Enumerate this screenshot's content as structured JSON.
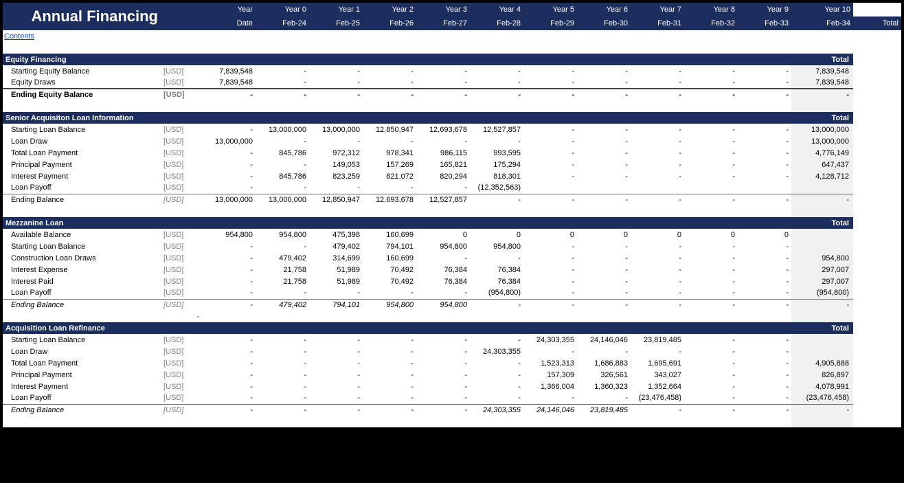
{
  "colors": {
    "header_bg": "#1b2e5e",
    "header_fg": "#ffffff",
    "total_col_bg": "#f0f0f0",
    "link": "#0b4db5",
    "unit": "#7e7e7e",
    "grid_border": "#555555"
  },
  "header": {
    "title": "Annual Financing",
    "year_label": "Year",
    "date_label": "Date",
    "years": [
      "Year 0",
      "Year 1",
      "Year 2",
      "Year 3",
      "Year 4",
      "Year 5",
      "Year 6",
      "Year 7",
      "Year 8",
      "Year 9",
      "Year 10"
    ],
    "dates": [
      "Feb-24",
      "Feb-25",
      "Feb-26",
      "Feb-27",
      "Feb-28",
      "Feb-29",
      "Feb-30",
      "Feb-31",
      "Feb-32",
      "Feb-33",
      "Feb-34"
    ],
    "total_label": "Total"
  },
  "contents_link": "Contents",
  "sections": [
    {
      "name": "Equity Financing",
      "show_total_label": true,
      "rows": [
        {
          "label": "Starting Equity Balance",
          "unit": "[USD]",
          "vals": [
            "7,839,548",
            "-",
            "-",
            "-",
            "-",
            "-",
            "-",
            "-",
            "-",
            "-",
            "-"
          ],
          "total": "7,839,548"
        },
        {
          "label": "Equity Draws",
          "unit": "[USD]",
          "vals": [
            "7,839,548",
            "-",
            "-",
            "-",
            "-",
            "-",
            "-",
            "-",
            "-",
            "-",
            "-"
          ],
          "total": "7,839,548"
        },
        {
          "label": "Ending Equity Balance",
          "unit": "[USD]",
          "vals": [
            "-",
            "-",
            "-",
            "-",
            "-",
            "-",
            "-",
            "-",
            "-",
            "-",
            "-"
          ],
          "total": "-",
          "bold": true,
          "topline": "heavy"
        }
      ]
    },
    {
      "name": "Senior Acquisiton Loan Information",
      "show_total_label": true,
      "rows": [
        {
          "label": "Starting Loan Balance",
          "unit": "[USD]",
          "vals": [
            "-",
            "13,000,000",
            "13,000,000",
            "12,850,947",
            "12,693,678",
            "12,527,857",
            "-",
            "-",
            "-",
            "-",
            "-"
          ],
          "total": "13,000,000"
        },
        {
          "label": "Loan Draw",
          "unit": "[USD]",
          "vals": [
            "13,000,000",
            "-",
            "-",
            "-",
            "-",
            "-",
            "-",
            "-",
            "-",
            "-",
            "-"
          ],
          "total": "13,000,000"
        },
        {
          "label": "Total Loan Payment",
          "unit": "[USD]",
          "vals": [
            "-",
            "845,786",
            "972,312",
            "978,341",
            "986,115",
            "993,595",
            "-",
            "-",
            "-",
            "-",
            "-"
          ],
          "total": "4,776,149"
        },
        {
          "label": "Principal Payment",
          "unit": "[USD]",
          "vals": [
            "-",
            "-",
            "149,053",
            "157,269",
            "165,821",
            "175,294",
            "-",
            "-",
            "-",
            "-",
            "-"
          ],
          "total": "647,437"
        },
        {
          "label": "Interest Payment",
          "unit": "[USD]",
          "vals": [
            "-",
            "845,786",
            "823,259",
            "821,072",
            "820,294",
            "818,301",
            "-",
            "-",
            "-",
            "-",
            "-"
          ],
          "total": "4,128,712"
        },
        {
          "label": "Loan Payoff",
          "unit": "[USD]",
          "vals": [
            "-",
            "-",
            "-",
            "-",
            "-",
            "(12,352,563)",
            "",
            "",
            "",
            "",
            ""
          ],
          "total": ""
        },
        {
          "label": "Ending Balance",
          "unit": "[USD]",
          "unit_italic": true,
          "vals": [
            "13,000,000",
            "13,000,000",
            "12,850,947",
            "12,693,678",
            "12,527,857",
            "-",
            "-",
            "-",
            "-",
            "-",
            "-"
          ],
          "total": "-",
          "topline": "normal"
        }
      ]
    },
    {
      "name": "Mezzanine Loan",
      "show_total_label": true,
      "rows": [
        {
          "label": "Available Balance",
          "unit": "[USD]",
          "vals": [
            "954,800",
            "954,800",
            "475,398",
            "160,699",
            "0",
            "0",
            "0",
            "0",
            "0",
            "0",
            "0"
          ],
          "total": ""
        },
        {
          "label": "Starting Loan Balance",
          "unit": "[USD]",
          "vals": [
            "-",
            "-",
            "479,402",
            "794,101",
            "954,800",
            "954,800",
            "-",
            "-",
            "-",
            "-",
            "-"
          ],
          "total": ""
        },
        {
          "label": "Construction Loan Draws",
          "unit": "[USD]",
          "vals": [
            "-",
            "479,402",
            "314,699",
            "160,699",
            "-",
            "-",
            "-",
            "-",
            "-",
            "-",
            "-"
          ],
          "total": "954,800"
        },
        {
          "label": "Interest Expense",
          "unit": "[USD]",
          "vals": [
            "-",
            "21,758",
            "51,989",
            "70,492",
            "76,384",
            "76,384",
            "-",
            "-",
            "-",
            "-",
            "-"
          ],
          "total": "297,007"
        },
        {
          "label": "Interest Paid",
          "unit": "[USD]",
          "vals": [
            "-",
            "21,758",
            "51,989",
            "70,492",
            "76,384",
            "76,384",
            "-",
            "-",
            "-",
            "-",
            "-"
          ],
          "total": "297,007"
        },
        {
          "label": "Loan Payoff",
          "unit": "[USD]",
          "vals": [
            "-",
            "-",
            "-",
            "-",
            "-",
            "(954,800)",
            "-",
            "-",
            "-",
            "-",
            "-"
          ],
          "total": "(954,800)"
        },
        {
          "label": "Ending Balance",
          "unit": "[USD]",
          "italic": true,
          "vals": [
            "-",
            "479,402",
            "794,101",
            "954,800",
            "954,800",
            "-",
            "-",
            "-",
            "-",
            "-",
            "-"
          ],
          "total": "-",
          "topline": "normal"
        }
      ],
      "trailing_dash": "-"
    },
    {
      "name": "Acquisition Loan Refinance",
      "show_total_label": true,
      "rows": [
        {
          "label": "Starting Loan Balance",
          "unit": "[USD]",
          "vals": [
            "-",
            "-",
            "-",
            "-",
            "-",
            "-",
            "24,303,355",
            "24,146,046",
            "23,819,485",
            "-",
            "-"
          ],
          "total": ""
        },
        {
          "label": "Loan Draw",
          "unit": "[USD]",
          "vals": [
            "-",
            "-",
            "-",
            "-",
            "-",
            "24,303,355",
            "-",
            "-",
            "-",
            "-",
            "-"
          ],
          "total": ""
        },
        {
          "label": "Total Loan Payment",
          "unit": "[USD]",
          "vals": [
            "-",
            "-",
            "-",
            "-",
            "-",
            "-",
            "1,523,313",
            "1,686,883",
            "1,695,691",
            "-",
            "-"
          ],
          "total": "4,905,888"
        },
        {
          "label": "Principal Payment",
          "unit": "[USD]",
          "vals": [
            "-",
            "-",
            "-",
            "-",
            "-",
            "-",
            "157,309",
            "326,561",
            "343,027",
            "-",
            "-"
          ],
          "total": "826,897"
        },
        {
          "label": "Interest Payment",
          "unit": "[USD]",
          "vals": [
            "-",
            "-",
            "-",
            "-",
            "-",
            "-",
            "1,366,004",
            "1,360,323",
            "1,352,664",
            "-",
            "-"
          ],
          "total": "4,078,991"
        },
        {
          "label": "Loan Payoff",
          "unit": "[USD]",
          "vals": [
            "-",
            "-",
            "-",
            "-",
            "-",
            "-",
            "-",
            "-",
            "(23,476,458)",
            "-",
            "-"
          ],
          "total": "(23,476,458)"
        },
        {
          "label": "Ending Balance",
          "unit": "[USD]",
          "italic": true,
          "vals": [
            "-",
            "-",
            "-",
            "-",
            "-",
            "24,303,355",
            "24,146,046",
            "23,819,485",
            "-",
            "-",
            "-"
          ],
          "total": "-",
          "topline": "normal"
        }
      ]
    }
  ]
}
